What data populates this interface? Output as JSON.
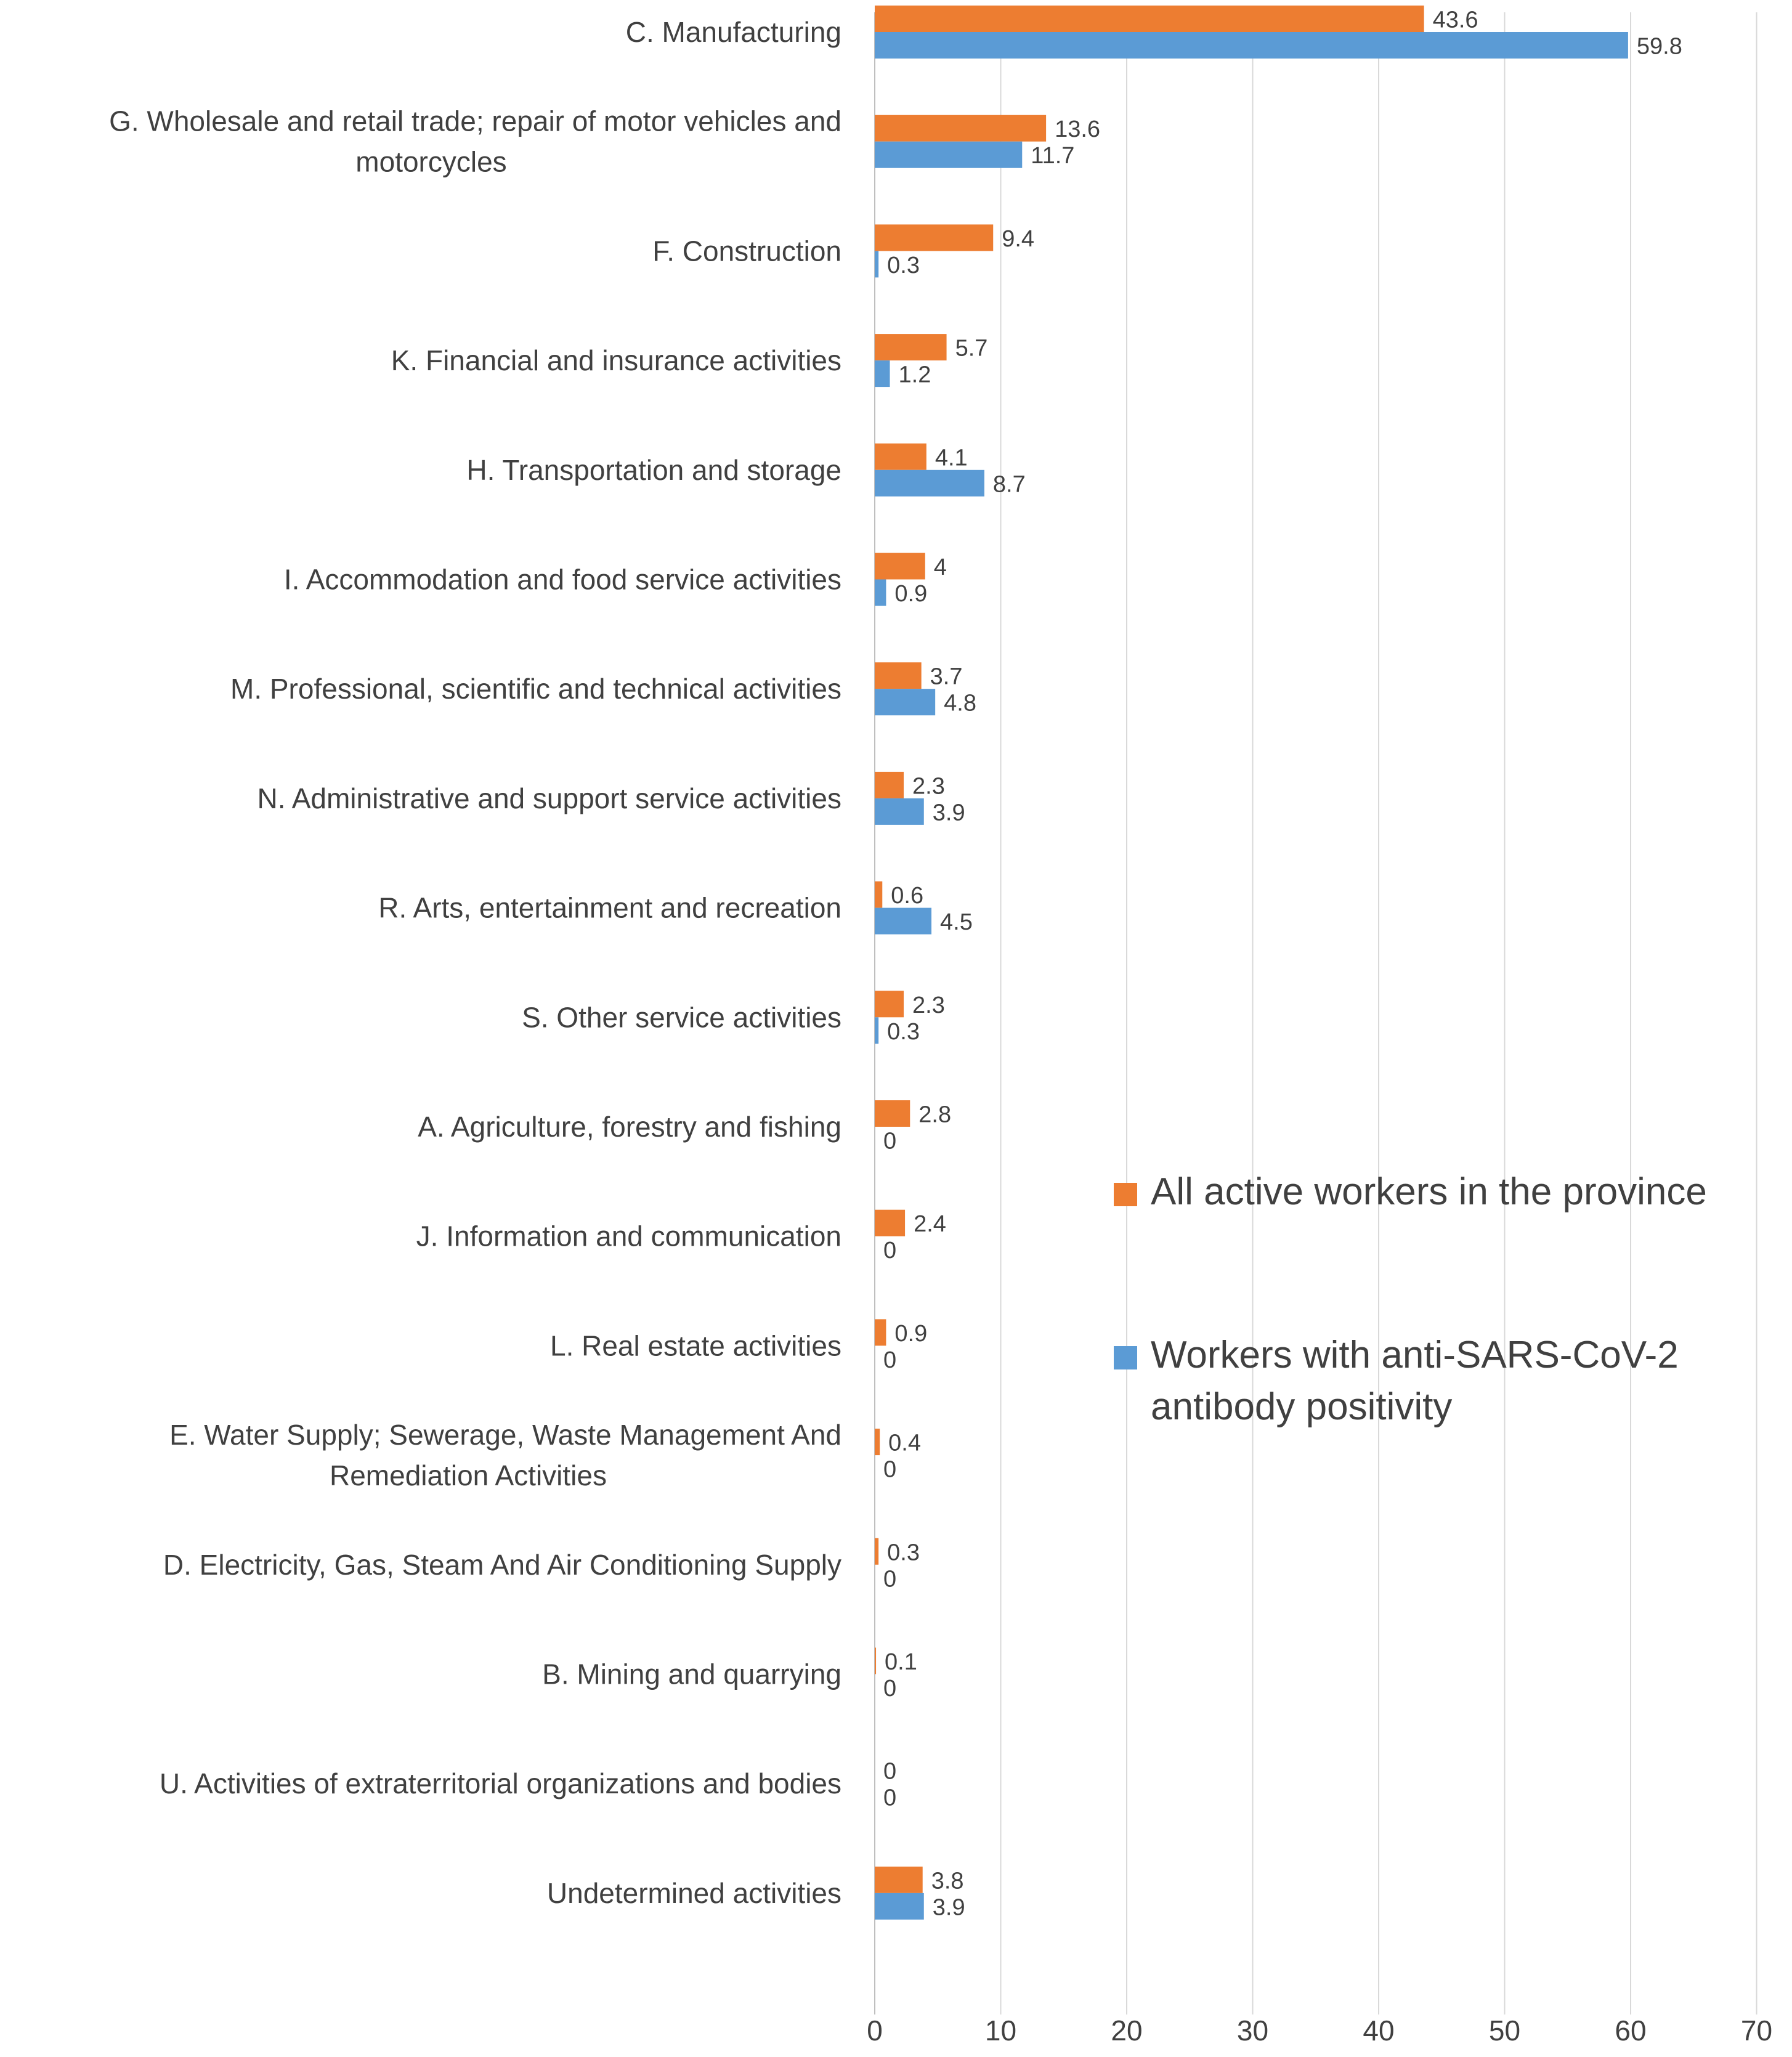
{
  "chart_data": {
    "type": "bar",
    "orientation": "horizontal",
    "title": "",
    "xlabel": "",
    "ylabel": "",
    "xlim": [
      0,
      70
    ],
    "xticks": [
      0,
      10,
      20,
      30,
      40,
      50,
      60,
      70
    ],
    "grid": "vertical",
    "legend_position": "right",
    "categories": [
      [
        "C. Manufacturing"
      ],
      [
        "G. Wholesale and retail trade; repair of motor vehicles and",
        "motorcycles"
      ],
      [
        "F. Construction"
      ],
      [
        "K. Financial and insurance activities"
      ],
      [
        "H. Transportation and storage"
      ],
      [
        "I. Accommodation and food service activities"
      ],
      [
        "M. Professional, scientific and technical activities"
      ],
      [
        "N. Administrative and support service activities"
      ],
      [
        "R. Arts, entertainment and recreation"
      ],
      [
        "S. Other service activities"
      ],
      [
        "A. Agriculture, forestry and fishing"
      ],
      [
        "J. Information and communication"
      ],
      [
        "L. Real estate activities"
      ],
      [
        "E. Water Supply; Sewerage, Waste Management And",
        "Remediation Activities"
      ],
      [
        "D. Electricity, Gas, Steam And Air Conditioning Supply"
      ],
      [
        "B. Mining and quarrying"
      ],
      [
        "U. Activities of extraterritorial organizations and bodies"
      ],
      [
        "Undetermined activities"
      ]
    ],
    "series": [
      {
        "name": "All active workers in the province",
        "color": "#ED7D31",
        "values": [
          43.6,
          13.6,
          9.4,
          5.7,
          4.1,
          4,
          3.7,
          2.3,
          0.6,
          2.3,
          2.8,
          2.4,
          0.9,
          0.4,
          0.3,
          0.1,
          0,
          3.8
        ]
      },
      {
        "name": "Workers with anti-SARS-CoV-2 antibody positivity",
        "color": "#5B9BD5",
        "values": [
          59.8,
          11.7,
          0.3,
          1.2,
          8.7,
          0.9,
          4.8,
          3.9,
          4.5,
          0.3,
          0,
          0,
          0,
          0,
          0,
          0,
          0,
          3.9
        ]
      }
    ],
    "legend": {
      "entries": [
        [
          "All active workers in the province"
        ],
        [
          "Workers with anti-SARS-CoV-2",
          "antibody positivity"
        ]
      ]
    }
  }
}
